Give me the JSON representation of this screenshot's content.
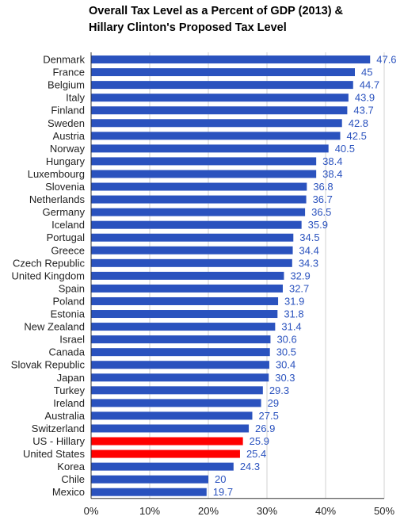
{
  "chart_data": {
    "type": "bar",
    "orientation": "horizontal",
    "title_lines": [
      "Overall Tax Level as a Percent of GDP (2013) &",
      "Hillary Clinton's Proposed Tax Level"
    ],
    "categories": [
      "Denmark",
      "France",
      "Belgium",
      "Italy",
      "Finland",
      "Sweden",
      "Austria",
      "Norway",
      "Hungary",
      "Luxembourg",
      "Slovenia",
      "Netherlands",
      "Germany",
      "Iceland",
      "Portugal",
      "Greece",
      "Czech Republic",
      "United Kingdom",
      "Spain",
      "Poland",
      "Estonia",
      "New Zealand",
      "Israel",
      "Canada",
      "Slovak Republic",
      "Japan",
      "Turkey",
      "Ireland",
      "Australia",
      "Switzerland",
      "US - Hillary",
      "United States",
      "Korea",
      "Chile",
      "Mexico"
    ],
    "values": [
      47.6,
      45,
      44.7,
      43.9,
      43.7,
      42.8,
      42.5,
      40.5,
      38.4,
      38.4,
      36.8,
      36.7,
      36.5,
      35.9,
      34.5,
      34.4,
      34.3,
      32.9,
      32.7,
      31.9,
      31.8,
      31.4,
      30.6,
      30.5,
      30.4,
      30.3,
      29.3,
      29,
      27.5,
      26.9,
      25.9,
      25.4,
      24.3,
      20,
      19.7
    ],
    "value_labels": [
      "47.6",
      "45",
      "44.7",
      "43.9",
      "43.7",
      "42.8",
      "42.5",
      "40.5",
      "38.4",
      "38.4",
      "36.8",
      "36.7",
      "36.5",
      "35.9",
      "34.5",
      "34.4",
      "34.3",
      "32.9",
      "32.7",
      "31.9",
      "31.8",
      "31.4",
      "30.6",
      "30.5",
      "30.4",
      "30.3",
      "29.3",
      "29",
      "27.5",
      "26.9",
      "25.9",
      "25.4",
      "24.3",
      "20",
      "19.7"
    ],
    "highlighted_categories": [
      "US - Hillary",
      "United States"
    ],
    "x_ticks": [
      "0%",
      "10%",
      "20%",
      "30%",
      "40%",
      "50%"
    ],
    "xlim": [
      0,
      50
    ],
    "xlabel": "",
    "ylabel": "",
    "grid": true,
    "colors": {
      "bar": "#2a52be",
      "highlight": "#ff0000",
      "value_label": "#2a52be",
      "grid": "#d0d0d0",
      "axis": "#333333",
      "text": "#222222"
    }
  }
}
